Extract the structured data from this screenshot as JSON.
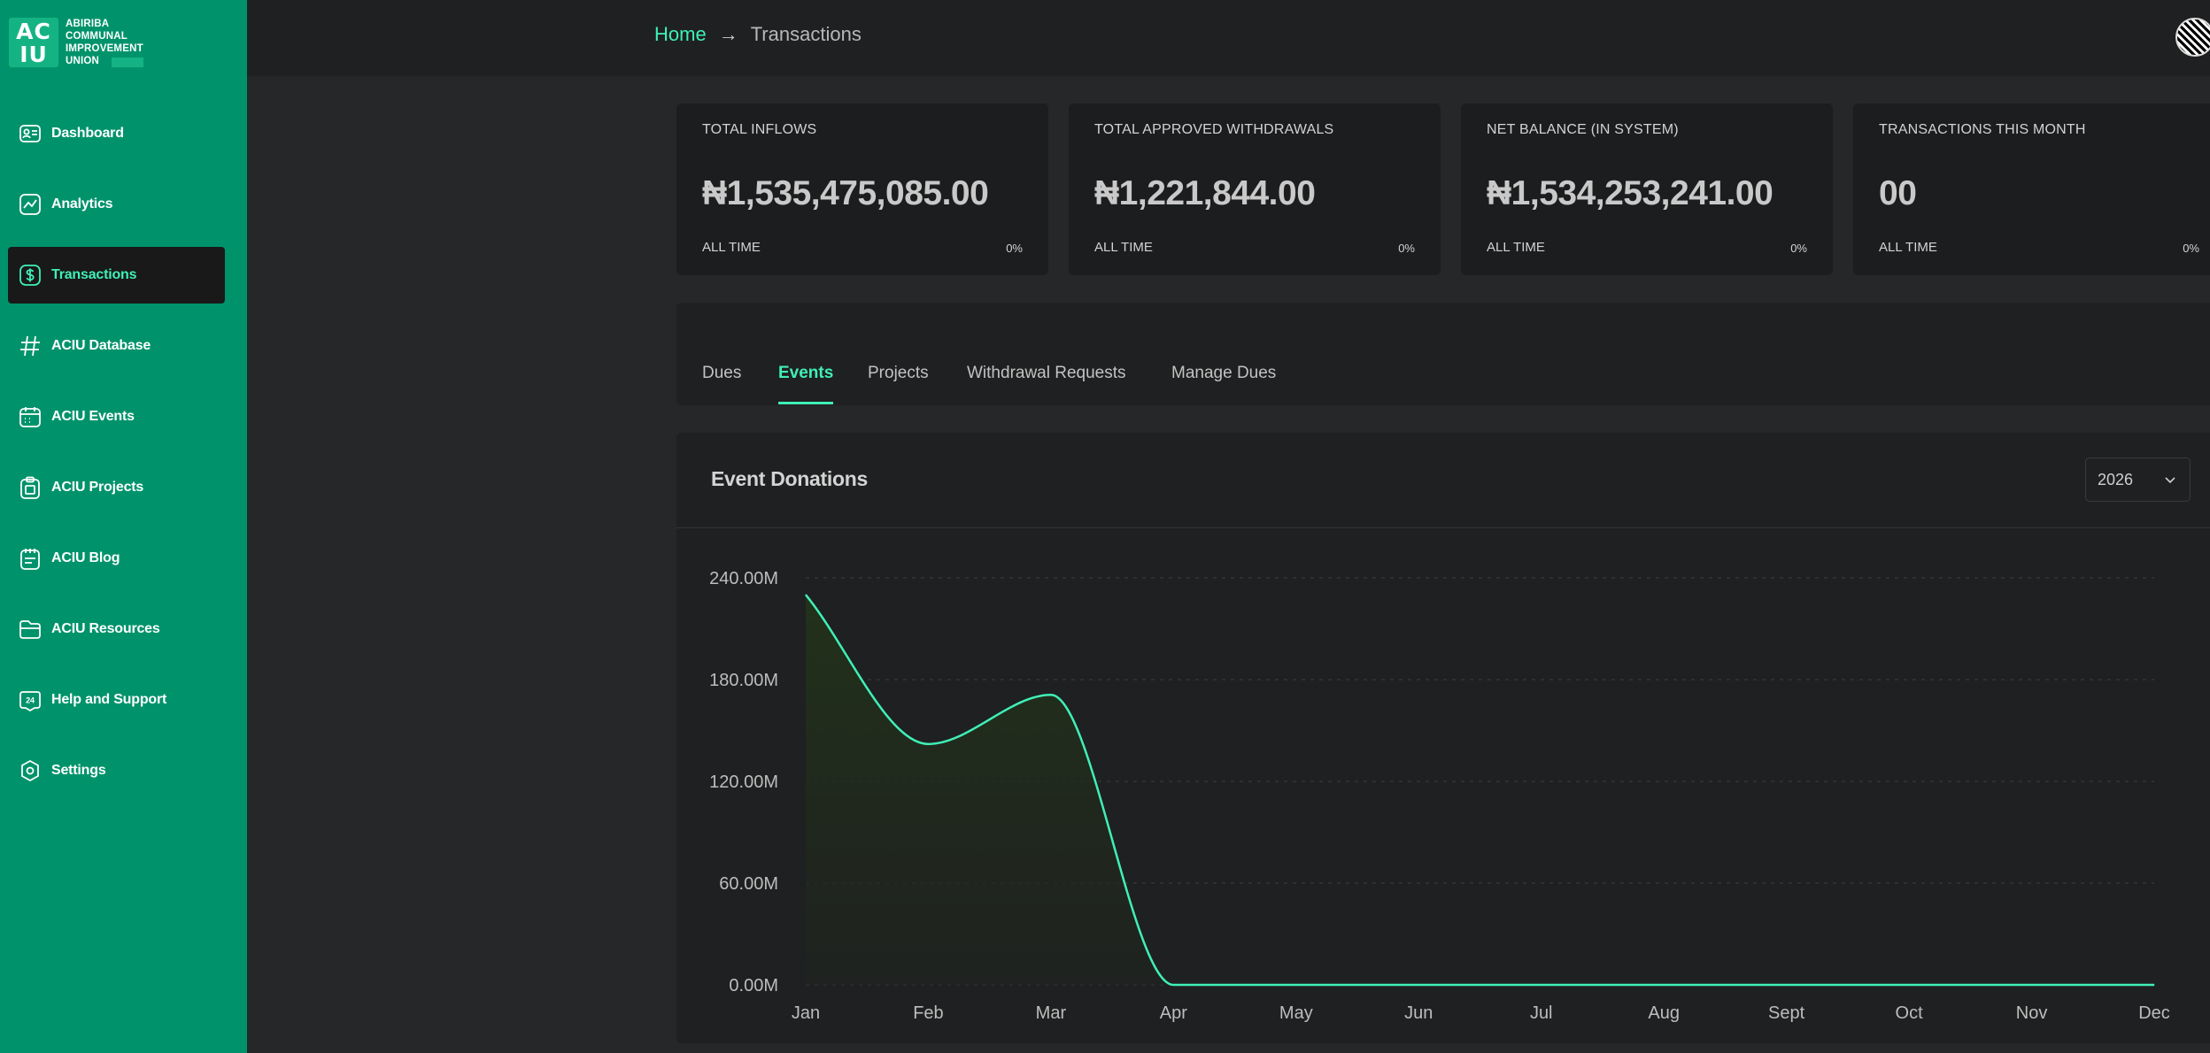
{
  "sidebar": {
    "logo": {
      "mark": "AC IU",
      "lines": [
        "ABIRIBA",
        "COMMUNAL",
        "IMPROVEMENT",
        "UNION"
      ]
    },
    "items": [
      {
        "label": "Dashboard",
        "icon": "id-card-icon"
      },
      {
        "label": "Analytics",
        "icon": "chart-icon"
      },
      {
        "label": "Transactions",
        "icon": "dollar-icon",
        "active": true
      },
      {
        "label": "ACIU Database",
        "icon": "hash-icon"
      },
      {
        "label": "ACIU Events",
        "icon": "calendar-icon"
      },
      {
        "label": "ACIU Projects",
        "icon": "clipboard-icon"
      },
      {
        "label": "ACIU Blog",
        "icon": "notepad-icon"
      },
      {
        "label": "ACIU Resources",
        "icon": "folder-icon"
      },
      {
        "label": "Help and Support",
        "icon": "support-24-icon"
      },
      {
        "label": "Settings",
        "icon": "gear-icon"
      }
    ]
  },
  "header": {
    "breadcrumb": {
      "home": "Home",
      "current": "Transactions"
    }
  },
  "stats": [
    {
      "label": "TOTAL INFLOWS",
      "value": "₦1,535,475,085.00",
      "period": "ALL TIME",
      "change": "0%"
    },
    {
      "label": "TOTAL APPROVED WITHDRAWALS",
      "value": "₦1,221,844.00",
      "period": "ALL TIME",
      "change": "0%"
    },
    {
      "label": "NET BALANCE (IN SYSTEM)",
      "value": "₦1,534,253,241.00",
      "period": "ALL TIME",
      "change": "0%"
    },
    {
      "label": "TRANSACTIONS THIS MONTH",
      "value": "00",
      "period": "ALL TIME",
      "change": "0%"
    }
  ],
  "tabs": [
    {
      "label": "Dues"
    },
    {
      "label": "Events",
      "active": true
    },
    {
      "label": "Projects"
    },
    {
      "label": "Withdrawal Requests"
    },
    {
      "label": "Manage Dues"
    }
  ],
  "chart_panel": {
    "title": "Event Donations",
    "year": "2026"
  },
  "colors": {
    "accent": "#3ff0b6",
    "sidebar": "#00936b",
    "background": "#262729",
    "panel": "#1f2021"
  },
  "chart_data": {
    "type": "area",
    "title": "Event Donations",
    "xlabel": "",
    "ylabel": "",
    "categories": [
      "Jan",
      "Feb",
      "Mar",
      "Apr",
      "May",
      "Jun",
      "Jul",
      "Aug",
      "Sept",
      "Oct",
      "Nov",
      "Dec"
    ],
    "values": [
      230000000,
      142000000,
      171000000,
      0,
      0,
      0,
      0,
      0,
      0,
      0,
      0,
      0
    ],
    "yticks": [
      "0.00M",
      "60.00M",
      "120.00M",
      "180.00M",
      "240.00M"
    ],
    "ylim": [
      0,
      240000000
    ],
    "grid": true,
    "line_color": "#3ff0b6"
  }
}
